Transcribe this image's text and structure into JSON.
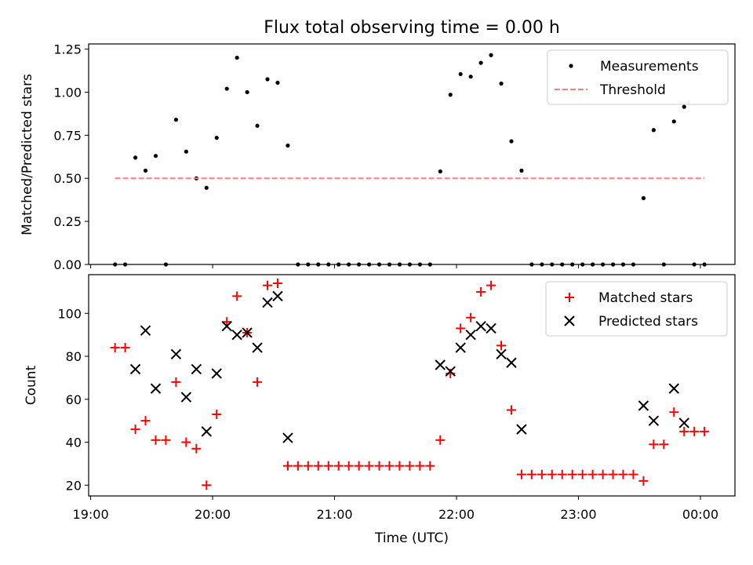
{
  "figure": {
    "title": "Flux total observing time = 0.00 h",
    "xlabel": "Time (UTC)",
    "x_ticks": [
      "19:00",
      "20:00",
      "21:00",
      "22:00",
      "23:00",
      "00:00"
    ]
  },
  "chart_data": [
    {
      "type": "scatter",
      "ylabel": "Matched/Predicted stars",
      "xlim": [
        "18:59",
        "24:17"
      ],
      "ylim": [
        0,
        1.28
      ],
      "y_ticks": [
        "0.00",
        "0.25",
        "0.50",
        "0.75",
        "1.00",
        "1.25"
      ],
      "legend_placement": "top-right",
      "series": [
        {
          "name": "Measurements",
          "style": "dot",
          "color": "#000000",
          "points": [
            [
              "19:12",
              0.0
            ],
            [
              "19:17",
              0.0
            ],
            [
              "19:22",
              0.62
            ],
            [
              "19:27",
              0.545
            ],
            [
              "19:32",
              0.63
            ],
            [
              "19:37",
              0.0
            ],
            [
              "19:42",
              0.84
            ],
            [
              "19:47",
              0.655
            ],
            [
              "19:52",
              0.5
            ],
            [
              "19:57",
              0.445
            ],
            [
              "20:02",
              0.735
            ],
            [
              "20:07",
              1.02
            ],
            [
              "20:12",
              1.2
            ],
            [
              "20:17",
              1.0
            ],
            [
              "20:22",
              0.805
            ],
            [
              "20:27",
              1.075
            ],
            [
              "20:32",
              1.055
            ],
            [
              "20:37",
              0.69
            ],
            [
              "20:42",
              0.0
            ],
            [
              "20:47",
              0.0
            ],
            [
              "20:52",
              0.0
            ],
            [
              "20:57",
              0.0
            ],
            [
              "21:02",
              0.0
            ],
            [
              "21:07",
              0.0
            ],
            [
              "21:12",
              0.0
            ],
            [
              "21:17",
              0.0
            ],
            [
              "21:22",
              0.0
            ],
            [
              "21:27",
              0.0
            ],
            [
              "21:32",
              0.0
            ],
            [
              "21:37",
              0.0
            ],
            [
              "21:42",
              0.0
            ],
            [
              "21:47",
              0.0
            ],
            [
              "21:52",
              0.54
            ],
            [
              "21:57",
              0.985
            ],
            [
              "22:02",
              1.105
            ],
            [
              "22:07",
              1.09
            ],
            [
              "22:12",
              1.17
            ],
            [
              "22:17",
              1.215
            ],
            [
              "22:22",
              1.05
            ],
            [
              "22:27",
              0.715
            ],
            [
              "22:32",
              0.545
            ],
            [
              "22:37",
              0.0
            ],
            [
              "22:42",
              0.0
            ],
            [
              "22:47",
              0.0
            ],
            [
              "22:52",
              0.0
            ],
            [
              "22:57",
              0.0
            ],
            [
              "23:02",
              0.0
            ],
            [
              "23:07",
              0.0
            ],
            [
              "23:12",
              0.0
            ],
            [
              "23:17",
              0.0
            ],
            [
              "23:22",
              0.0
            ],
            [
              "23:27",
              0.0
            ],
            [
              "23:32",
              0.385
            ],
            [
              "23:37",
              0.78
            ],
            [
              "23:42",
              0.0
            ],
            [
              "23:47",
              0.83
            ],
            [
              "23:52",
              0.915
            ],
            [
              "23:57",
              0.0
            ],
            [
              "24:02",
              0.0
            ]
          ]
        },
        {
          "name": "Threshold",
          "style": "dashed-line",
          "color": "#ff7f7f",
          "points": [
            [
              "19:12",
              0.5
            ],
            [
              "24:02",
              0.5
            ]
          ]
        }
      ]
    },
    {
      "type": "scatter",
      "ylabel": "Count",
      "xlim": [
        "18:59",
        "24:17"
      ],
      "ylim": [
        15,
        118
      ],
      "y_ticks": [
        "20",
        "40",
        "60",
        "80",
        "100"
      ],
      "legend_placement": "top-right",
      "series": [
        {
          "name": "Matched stars",
          "style": "plus",
          "color": "#ff0000",
          "points": [
            [
              "19:12",
              84
            ],
            [
              "19:17",
              84
            ],
            [
              "19:22",
              46
            ],
            [
              "19:27",
              50
            ],
            [
              "19:32",
              41
            ],
            [
              "19:37",
              41
            ],
            [
              "19:42",
              68
            ],
            [
              "19:47",
              40
            ],
            [
              "19:52",
              37
            ],
            [
              "19:57",
              20
            ],
            [
              "20:02",
              53
            ],
            [
              "20:07",
              96
            ],
            [
              "20:12",
              108
            ],
            [
              "20:17",
              91
            ],
            [
              "20:22",
              68
            ],
            [
              "20:27",
              113
            ],
            [
              "20:32",
              114
            ],
            [
              "20:37",
              29
            ],
            [
              "20:42",
              29
            ],
            [
              "20:47",
              29
            ],
            [
              "20:52",
              29
            ],
            [
              "20:57",
              29
            ],
            [
              "21:02",
              29
            ],
            [
              "21:07",
              29
            ],
            [
              "21:12",
              29
            ],
            [
              "21:17",
              29
            ],
            [
              "21:22",
              29
            ],
            [
              "21:27",
              29
            ],
            [
              "21:32",
              29
            ],
            [
              "21:37",
              29
            ],
            [
              "21:42",
              29
            ],
            [
              "21:47",
              29
            ],
            [
              "21:52",
              41
            ],
            [
              "21:57",
              72
            ],
            [
              "22:02",
              93
            ],
            [
              "22:07",
              98
            ],
            [
              "22:12",
              110
            ],
            [
              "22:17",
              113
            ],
            [
              "22:22",
              85
            ],
            [
              "22:27",
              55
            ],
            [
              "22:32",
              25
            ],
            [
              "22:37",
              25
            ],
            [
              "22:42",
              25
            ],
            [
              "22:47",
              25
            ],
            [
              "22:52",
              25
            ],
            [
              "22:57",
              25
            ],
            [
              "23:02",
              25
            ],
            [
              "23:07",
              25
            ],
            [
              "23:12",
              25
            ],
            [
              "23:17",
              25
            ],
            [
              "23:22",
              25
            ],
            [
              "23:27",
              25
            ],
            [
              "23:32",
              22
            ],
            [
              "23:37",
              39
            ],
            [
              "23:42",
              39
            ],
            [
              "23:47",
              54
            ],
            [
              "23:52",
              45
            ],
            [
              "23:57",
              45
            ],
            [
              "24:02",
              45
            ]
          ]
        },
        {
          "name": "Predicted stars",
          "style": "x",
          "color": "#000000",
          "points": [
            [
              "19:22",
              74
            ],
            [
              "19:27",
              92
            ],
            [
              "19:32",
              65
            ],
            [
              "19:42",
              81
            ],
            [
              "19:47",
              61
            ],
            [
              "19:52",
              74
            ],
            [
              "19:57",
              45
            ],
            [
              "20:02",
              72
            ],
            [
              "20:07",
              94
            ],
            [
              "20:12",
              90
            ],
            [
              "20:17",
              91
            ],
            [
              "20:22",
              84
            ],
            [
              "20:27",
              105
            ],
            [
              "20:32",
              108
            ],
            [
              "20:37",
              42
            ],
            [
              "21:52",
              76
            ],
            [
              "21:57",
              73
            ],
            [
              "22:02",
              84
            ],
            [
              "22:07",
              90
            ],
            [
              "22:12",
              94
            ],
            [
              "22:17",
              93
            ],
            [
              "22:22",
              81
            ],
            [
              "22:27",
              77
            ],
            [
              "22:32",
              46
            ],
            [
              "23:32",
              57
            ],
            [
              "23:37",
              50
            ],
            [
              "23:47",
              65
            ],
            [
              "23:52",
              49
            ]
          ]
        }
      ]
    }
  ]
}
